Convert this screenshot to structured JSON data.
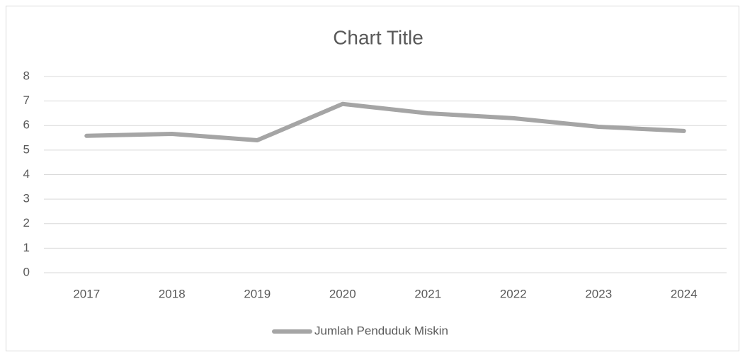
{
  "chart_data": {
    "type": "line",
    "title": "Chart Title",
    "categories": [
      "2017",
      "2018",
      "2019",
      "2020",
      "2021",
      "2022",
      "2023",
      "2024"
    ],
    "series": [
      {
        "name": "Jumlah Penduduk Miskin",
        "color": "#a5a5a5",
        "values": [
          5.58,
          5.66,
          5.4,
          6.88,
          6.5,
          6.3,
          5.95,
          5.78
        ]
      }
    ],
    "ylim": [
      0,
      8
    ],
    "yticks": [
      0,
      1,
      2,
      3,
      4,
      5,
      6,
      7,
      8
    ],
    "grid": true,
    "legend": "bottom"
  }
}
